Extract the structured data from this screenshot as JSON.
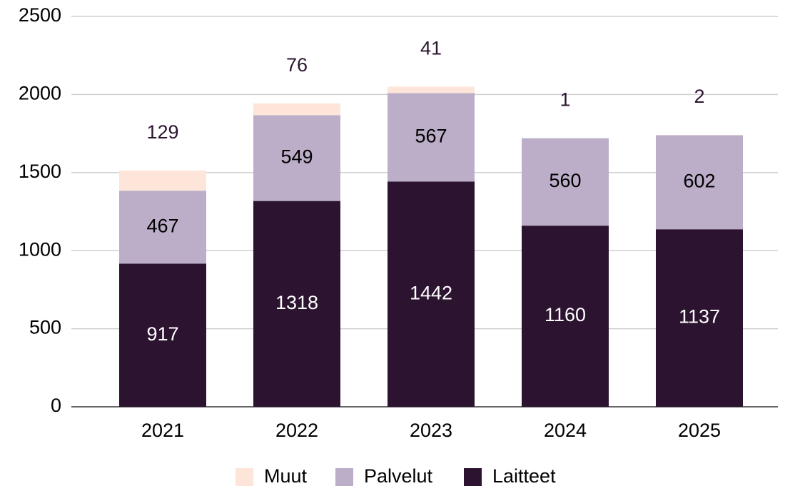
{
  "chart_data": {
    "type": "stacked_bar",
    "categories": [
      "2021",
      "2022",
      "2023",
      "2024",
      "2025"
    ],
    "series": [
      {
        "name": "Laitteet",
        "color": "#2c1330",
        "label_color": "#ffffff",
        "values": [
          917,
          1318,
          1442,
          1160,
          1137
        ]
      },
      {
        "name": "Palvelut",
        "color": "#bcaec9",
        "label_color": "#000000",
        "values": [
          467,
          549,
          567,
          560,
          602
        ]
      },
      {
        "name": "Muut",
        "color": "#fde5da",
        "label_color": "#2c1330",
        "values": [
          129,
          76,
          41,
          1,
          2
        ]
      }
    ],
    "ylim": [
      0,
      2500
    ],
    "yticks": [
      0,
      500,
      1000,
      1500,
      2000,
      2500
    ],
    "grid": true,
    "legend": "bottom"
  }
}
